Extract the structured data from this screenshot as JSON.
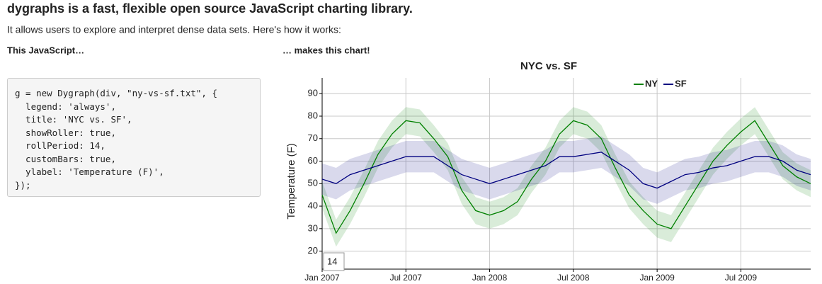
{
  "page": {
    "heading": "dygraphs is a fast, flexible open source JavaScript charting library.",
    "intro": "It allows users to explore and interpret dense data sets. Here's how it works:",
    "left_label": "This JavaScript…",
    "right_label": "… makes this chart!"
  },
  "code": {
    "lines": [
      "g = new Dygraph(div, \"ny-vs-sf.txt\", {",
      "  legend: 'always',",
      "  title: 'NYC vs. SF',",
      "  showRoller: true,",
      "  rollPeriod: 14,",
      "  customBars: true,",
      "  ylabel: 'Temperature (F)',",
      "});"
    ]
  },
  "roller": "14",
  "chart_data": {
    "type": "line",
    "title": "NYC vs. SF",
    "ylabel": "Temperature (F)",
    "grid": true,
    "legend": "top-right",
    "x": [
      "2007-01",
      "2007-02",
      "2007-03",
      "2007-04",
      "2007-05",
      "2007-06",
      "2007-07",
      "2007-08",
      "2007-09",
      "2007-10",
      "2007-11",
      "2007-12",
      "2008-01",
      "2008-02",
      "2008-03",
      "2008-04",
      "2008-05",
      "2008-06",
      "2008-07",
      "2008-08",
      "2008-09",
      "2008-10",
      "2008-11",
      "2008-12",
      "2009-01",
      "2009-02",
      "2009-03",
      "2009-04",
      "2009-05",
      "2009-06",
      "2009-07",
      "2009-08",
      "2009-09",
      "2009-10",
      "2009-11",
      "2009-12"
    ],
    "xlim": [
      "2007-01",
      "2009-12"
    ],
    "xticks": [
      {
        "value": "2007-01",
        "label": "Jan 2007"
      },
      {
        "value": "2007-07",
        "label": "Jul 2007"
      },
      {
        "value": "2008-01",
        "label": "Jan 2008"
      },
      {
        "value": "2008-07",
        "label": "Jul 2008"
      },
      {
        "value": "2009-01",
        "label": "Jan 2009"
      },
      {
        "value": "2009-07",
        "label": "Jul 2009"
      }
    ],
    "ylim": [
      12,
      97
    ],
    "yticks": [
      20,
      30,
      40,
      50,
      60,
      70,
      80,
      90
    ],
    "series": [
      {
        "name": "NY",
        "color": "#008000",
        "values": [
          45,
          28,
          38,
          50,
          63,
          72,
          78,
          77,
          70,
          62,
          47,
          38,
          36,
          38,
          42,
          52,
          60,
          72,
          78,
          76,
          70,
          57,
          45,
          38,
          32,
          30,
          40,
          50,
          60,
          67,
          73,
          78,
          68,
          58,
          53,
          50
        ],
        "lows": [
          39,
          22,
          32,
          44,
          57,
          66,
          72,
          71,
          64,
          56,
          41,
          32,
          30,
          32,
          36,
          46,
          54,
          66,
          72,
          70,
          64,
          51,
          39,
          32,
          26,
          24,
          34,
          44,
          54,
          61,
          67,
          72,
          62,
          52,
          47,
          44
        ],
        "highs": [
          51,
          34,
          44,
          56,
          69,
          78,
          84,
          83,
          76,
          68,
          53,
          44,
          42,
          44,
          48,
          58,
          66,
          78,
          84,
          82,
          76,
          63,
          51,
          44,
          38,
          36,
          46,
          56,
          66,
          73,
          79,
          84,
          74,
          64,
          59,
          56
        ]
      },
      {
        "name": "SF",
        "color": "#000080",
        "values": [
          52,
          50,
          54,
          56,
          58,
          60,
          62,
          62,
          62,
          58,
          54,
          52,
          50,
          52,
          54,
          56,
          58,
          62,
          62,
          63,
          64,
          60,
          56,
          50,
          48,
          51,
          54,
          55,
          57,
          58,
          60,
          62,
          62,
          60,
          56,
          54
        ],
        "lows": [
          45,
          43,
          47,
          49,
          51,
          53,
          55,
          55,
          55,
          51,
          47,
          45,
          43,
          45,
          47,
          49,
          51,
          55,
          55,
          56,
          57,
          53,
          49,
          43,
          41,
          44,
          47,
          48,
          50,
          51,
          53,
          55,
          55,
          53,
          49,
          47
        ],
        "highs": [
          59,
          57,
          61,
          63,
          65,
          67,
          69,
          69,
          69,
          65,
          61,
          59,
          57,
          59,
          61,
          63,
          65,
          69,
          69,
          70,
          71,
          67,
          63,
          57,
          55,
          58,
          61,
          62,
          64,
          65,
          67,
          69,
          69,
          67,
          63,
          61
        ]
      }
    ]
  }
}
